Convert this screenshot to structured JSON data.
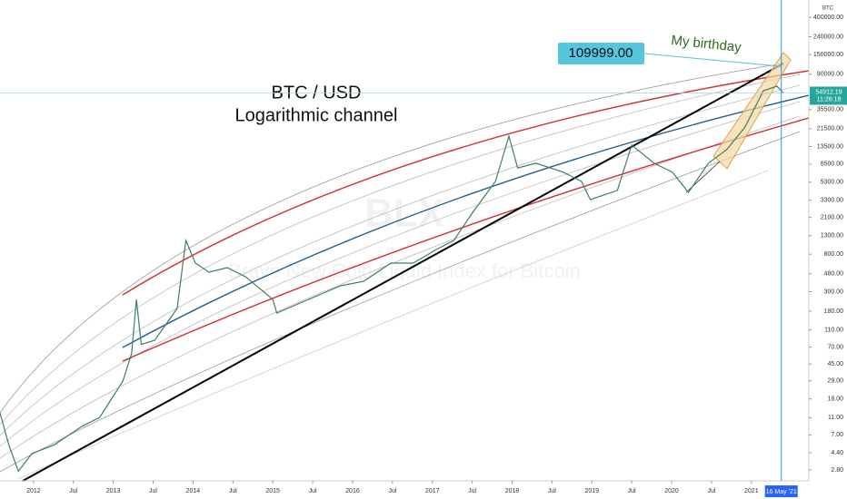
{
  "chart_data": {
    "type": "line",
    "title": "BTC / USD",
    "subtitle": "Logarithmic channel",
    "annotation": "My birthday",
    "target": {
      "value": 109999,
      "label": "109999.00"
    },
    "watermark": [
      "BLX",
      "Brave New Coin Liquid Index for Bitcoin"
    ],
    "axis_unit": "BTC",
    "last_price": 54912.19,
    "timer": "11:26:18",
    "crosshair_date": {
      "value": 2021.375,
      "label": "16 May '21"
    },
    "log_scale": true,
    "grid": false,
    "color": "#3f7f62",
    "x": [
      2011.58,
      2011.69,
      2011.81,
      2011.98,
      2012.26,
      2012.61,
      2012.83,
      2013.12,
      2013.23,
      2013.29,
      2013.35,
      2013.52,
      2013.8,
      2013.91,
      2014.03,
      2014.2,
      2014.43,
      2014.66,
      2015.0,
      2015.05,
      2015.45,
      2015.85,
      2016.14,
      2016.48,
      2016.76,
      2017.05,
      2017.27,
      2017.5,
      2017.79,
      2017.96,
      2018.07,
      2018.3,
      2018.64,
      2018.87,
      2018.98,
      2019.32,
      2019.5,
      2019.78,
      2020.01,
      2020.21,
      2020.46,
      2020.69,
      2020.92,
      2021.15,
      2021.32,
      2021.4
    ],
    "values": [
      12.5,
      5.4,
      2.7,
      4.3,
      5.4,
      8.8,
      11.1,
      28.7,
      59,
      245,
      75,
      84,
      193,
      1150,
      634,
      500,
      563,
      443,
      245,
      171,
      245,
      350,
      394,
      634,
      634,
      906,
      1150,
      2350,
      5400,
      17700,
      7700,
      8700,
      6900,
      5400,
      3350,
      4260,
      14000,
      8700,
      6900,
      4050,
      8700,
      12400,
      22500,
      58200,
      65600,
      54912.19
    ],
    "xlim": [
      2011.58,
      2021.72
    ],
    "ylim": [
      2.1,
      629000
    ],
    "xticks": [
      {
        "value": 2012,
        "label": "2012"
      },
      {
        "value": 2012.5,
        "label": "Jul"
      },
      {
        "value": 2013,
        "label": "2013"
      },
      {
        "value": 2013.5,
        "label": "Jul"
      },
      {
        "value": 2014,
        "label": "2014"
      },
      {
        "value": 2014.5,
        "label": "Jul"
      },
      {
        "value": 2015,
        "label": "2015"
      },
      {
        "value": 2015.5,
        "label": "Jul"
      },
      {
        "value": 2016,
        "label": "2016"
      },
      {
        "value": 2016.5,
        "label": "Jul"
      },
      {
        "value": 2017,
        "label": "2017"
      },
      {
        "value": 2017.5,
        "label": "Jul"
      },
      {
        "value": 2018,
        "label": "2018"
      },
      {
        "value": 2018.5,
        "label": "Jul"
      },
      {
        "value": 2019,
        "label": "2019"
      },
      {
        "value": 2019.5,
        "label": "Jul"
      },
      {
        "value": 2020,
        "label": "2020"
      },
      {
        "value": 2020.5,
        "label": "Jul"
      },
      {
        "value": 2021,
        "label": "2021"
      }
    ],
    "yticks": [
      {
        "value": 400000,
        "label": "400000.00"
      },
      {
        "value": 240000,
        "label": "240000.00"
      },
      {
        "value": 150000,
        "label": "150000.00"
      },
      {
        "value": 90000,
        "label": "90000.00"
      },
      {
        "value": 35500,
        "label": "35500.00"
      },
      {
        "value": 21500,
        "label": "21500.00"
      },
      {
        "value": 13500,
        "label": "13500.00"
      },
      {
        "value": 8500,
        "label": "8500.00"
      },
      {
        "value": 5300,
        "label": "5300.00"
      },
      {
        "value": 3300,
        "label": "3300.00"
      },
      {
        "value": 2100,
        "label": "2100.00"
      },
      {
        "value": 1300,
        "label": "1300.00"
      },
      {
        "value": 800,
        "label": "800.00"
      },
      {
        "value": 480,
        "label": "480.00"
      },
      {
        "value": 300,
        "label": "300.00"
      },
      {
        "value": 180,
        "label": "180.00"
      },
      {
        "value": 110,
        "label": "110.00"
      },
      {
        "value": 70,
        "label": "70.00"
      },
      {
        "value": 45,
        "label": "45.00"
      },
      {
        "value": 29,
        "label": "29.00"
      },
      {
        "value": 18,
        "label": "18.00"
      },
      {
        "value": 11,
        "label": "11.00"
      },
      {
        "value": 7,
        "label": "7.00"
      },
      {
        "value": 4.4,
        "label": "4.40"
      },
      {
        "value": 2.8,
        "label": "2.80"
      }
    ]
  }
}
